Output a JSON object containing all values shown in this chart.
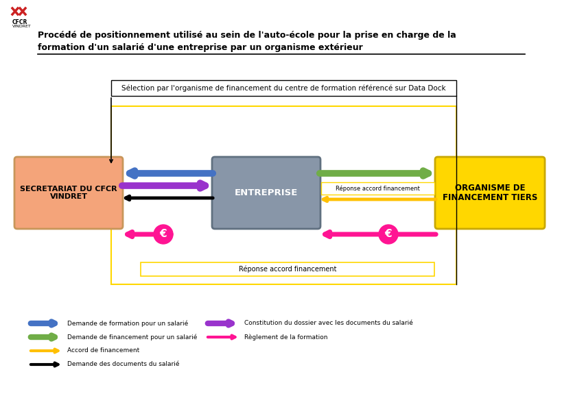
{
  "title_line1": "Procédé de positionnement utilisé au sein de l'auto-école pour la prise en charge de la",
  "title_line2": "formation d'un salarié d'une entreprise par un organisme extérieur",
  "top_box_text": "Sélection par l'organisme de financement du centre de formation référencé sur Data Dock",
  "left_box_text": "SECRETARIAT DU CFCR\nVINDRET",
  "center_box_text": "ENTREPRISE",
  "right_box_text": "ORGANISME DE\nFINANCEMENT TIERS",
  "left_box_color": "#F4A47A",
  "center_box_color": "#8896A8",
  "right_box_color": "#FFD700",
  "yellow_border": "#FFD700",
  "response_label_center": "Réponse accord financement",
  "response_label_bottom": "Réponse accord financement",
  "euro_color": "#FF1493",
  "legend_items": [
    {
      "color": "#4472C4",
      "label": "Demande de formation pour un salarié",
      "lw": 6
    },
    {
      "color": "#70AD47",
      "label": "Demande de financement pour un salarié",
      "lw": 6
    },
    {
      "color": "#FFC000",
      "label": "Accord de financement",
      "lw": 3
    },
    {
      "color": "#000000",
      "label": "Demande des documents du salarié",
      "lw": 3
    },
    {
      "color": "#9933CC",
      "label": "Constitution du dossier avec les documents du salarié",
      "lw": 6
    },
    {
      "color": "#FF1493",
      "label": "Règlement de la formation",
      "lw": 3
    }
  ],
  "bg_color": "#FFFFFF"
}
